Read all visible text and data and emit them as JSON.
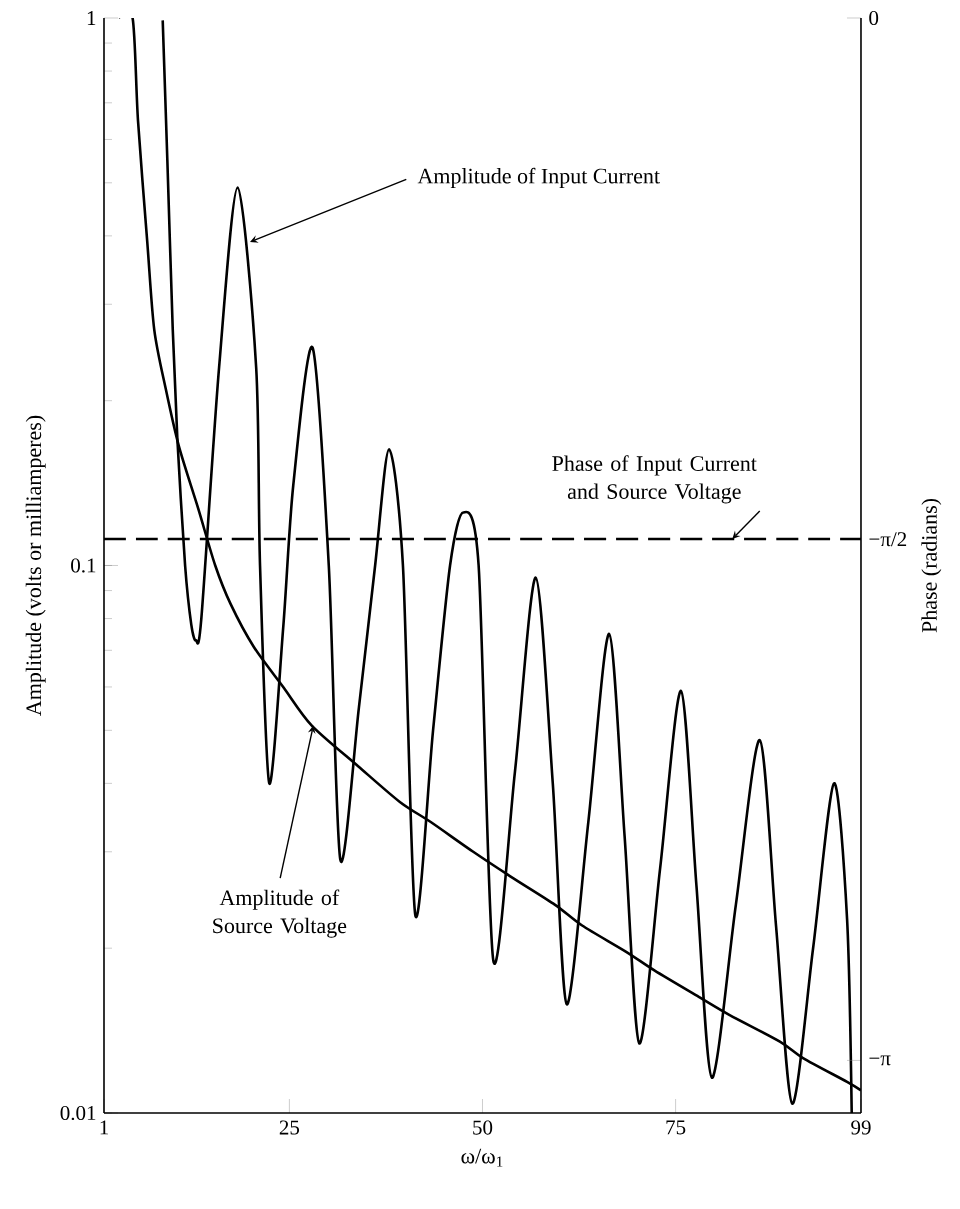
{
  "chart_data": {
    "type": "line",
    "xlabel": "ω/ω$_{1}$",
    "ylabel": "Amplitude (volts or milliamperes)",
    "y2label": "Phase (radians)",
    "log": "y",
    "xlim": [
      1,
      99
    ],
    "xticks": [
      1,
      25,
      50,
      75,
      99
    ],
    "ylim": [
      0.01,
      1
    ],
    "yticks": [
      0.01,
      0.1,
      1
    ],
    "y2lim": [
      -3.3,
      0
    ],
    "y2ticks": [
      0,
      {
        "value": -1.5708,
        "label": "−π/2"
      },
      {
        "value": -3.1416,
        "label": "−π"
      }
    ],
    "series": [
      {
        "color": "#000000",
        "line_style": "solid",
        "x": [
          8.6,
          9.2,
          9.9,
          10.5,
          11.5,
          12.3,
          12.9,
          13.6,
          15.9,
          18.3,
          20.7,
          21.2,
          22.4,
          24.2,
          25.5,
          28.0,
          30.1,
          31.6,
          34.0,
          36.1,
          37.9,
          39.7,
          41.3,
          43.6,
          45.8,
          47.5,
          49.5,
          51.4,
          54.2,
          56.9,
          59.1,
          60.9,
          63.7,
          66.4,
          68.4,
          70.3,
          73.0,
          75.7,
          77.7,
          79.7,
          82.8,
          85.9,
          88.0,
          90.1,
          92.8,
          95.5,
          97.2,
          97.8
        ],
        "values": [
          0.99,
          0.55,
          0.27,
          0.17,
          0.1,
          0.078,
          0.073,
          0.08,
          0.23,
          0.49,
          0.23,
          0.1,
          0.04,
          0.077,
          0.14,
          0.25,
          0.1,
          0.029,
          0.055,
          0.1,
          0.163,
          0.1,
          0.023,
          0.05,
          0.1,
          0.125,
          0.1,
          0.019,
          0.042,
          0.095,
          0.04,
          0.0158,
          0.034,
          0.075,
          0.032,
          0.0134,
          0.028,
          0.059,
          0.026,
          0.0116,
          0.024,
          0.048,
          0.022,
          0.0104,
          0.02,
          0.04,
          0.0226,
          0.01
        ]
      },
      {
        "color": "#000000",
        "line_style": "solid",
        "x": [
          2.9,
          4.7,
          5.4,
          6.6,
          7.5,
          9.0,
          10.7,
          13.2,
          15.4,
          17.4,
          20.4,
          24.2,
          27.9,
          33.9,
          39.3,
          43.3,
          48.8,
          53.7,
          59.4,
          62.9,
          68.6,
          72.3,
          78.0,
          82.0,
          88.5,
          91.5,
          97.2,
          99
        ],
        "values": [
          1,
          1,
          0.65,
          0.39,
          0.27,
          0.21,
          0.165,
          0.127,
          0.1,
          0.085,
          0.071,
          0.06,
          0.051,
          0.043,
          0.037,
          0.034,
          0.03,
          0.027,
          0.024,
          0.022,
          0.0197,
          0.0182,
          0.0163,
          0.0151,
          0.0135,
          0.0126,
          0.0114,
          0.011
        ]
      },
      {
        "color": "#000000",
        "line_style": "dashed",
        "axis": "y2",
        "x": [
          1,
          99
        ],
        "values": [
          -1.57,
          -1.57
        ]
      }
    ],
    "annotations": [
      {
        "text": "Amplitude of Input Current",
        "x": 19.9,
        "y": 0.39
      },
      "Phase of Input Current and Source Voltage",
      {
        "text": "Amplitude of Source Voltage",
        "x": 28.1,
        "y": 0.051
      }
    ]
  }
}
